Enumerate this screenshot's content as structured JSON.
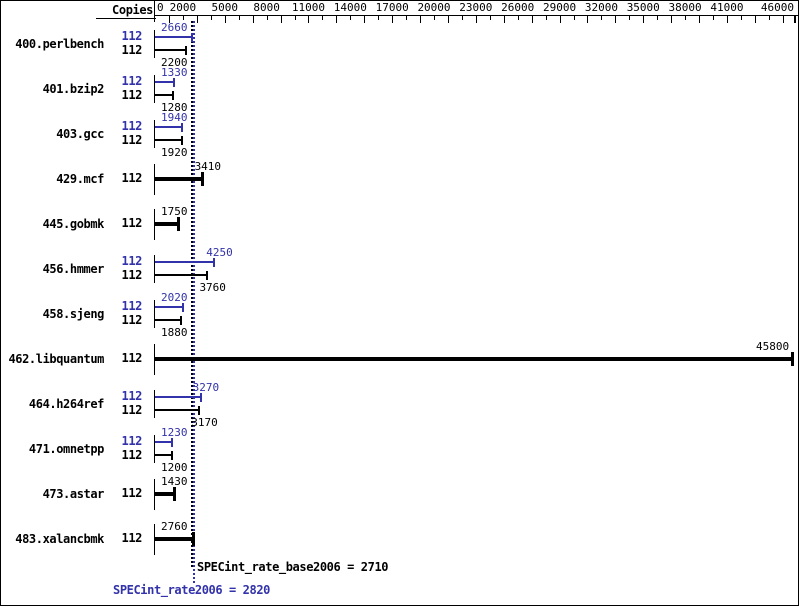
{
  "header": {
    "copies_label": "Copies"
  },
  "colors": {
    "peak_blue": "#3232aa",
    "base_black": "#000000",
    "background": "#ffffff"
  },
  "chart_data": {
    "type": "bar",
    "orientation": "horizontal",
    "xlim": [
      0,
      46000
    ],
    "grid": "off",
    "legend": "none",
    "axis_tick_step": 1000,
    "axis_tick_labels": [
      0,
      2000,
      5000,
      8000,
      11000,
      14000,
      17000,
      20000,
      23000,
      26000,
      29000,
      32000,
      35000,
      38000,
      41000,
      46000
    ],
    "copies_column_label": "Copies",
    "series": [
      {
        "name": "SPECint_rate2006 (peak)",
        "color": "#3232aa"
      },
      {
        "name": "SPECint_rate_base2006 (base)",
        "color": "#000000"
      }
    ],
    "benchmarks": [
      {
        "name": "400.perlbench",
        "copies": "112",
        "peak": 2660,
        "base": 2200
      },
      {
        "name": "401.bzip2",
        "copies": "112",
        "peak": 1330,
        "base": 1280
      },
      {
        "name": "403.gcc",
        "copies": "112",
        "peak": 1940,
        "base": 1920
      },
      {
        "name": "429.mcf",
        "copies": "112",
        "single": 3410
      },
      {
        "name": "445.gobmk",
        "copies": "112",
        "single": 1750
      },
      {
        "name": "456.hmmer",
        "copies": "112",
        "peak": 4250,
        "base": 3760
      },
      {
        "name": "458.sjeng",
        "copies": "112",
        "peak": 2020,
        "base": 1880
      },
      {
        "name": "462.libquantum",
        "copies": "112",
        "single": 45800
      },
      {
        "name": "464.h264ref",
        "copies": "112",
        "peak": 3270,
        "base": 3170
      },
      {
        "name": "471.omnetpp",
        "copies": "112",
        "peak": 1230,
        "base": 1200
      },
      {
        "name": "473.astar",
        "copies": "112",
        "single": 1430
      },
      {
        "name": "483.xalancbmk",
        "copies": "112",
        "single": 2760
      }
    ],
    "summary": {
      "base_metric": "SPECint_rate_base2006",
      "base_value": 2710,
      "base_text": "SPECint_rate_base2006 = 2710",
      "peak_metric": "SPECint_rate2006",
      "peak_value": 2820,
      "peak_text": "SPECint_rate2006 = 2820"
    }
  }
}
